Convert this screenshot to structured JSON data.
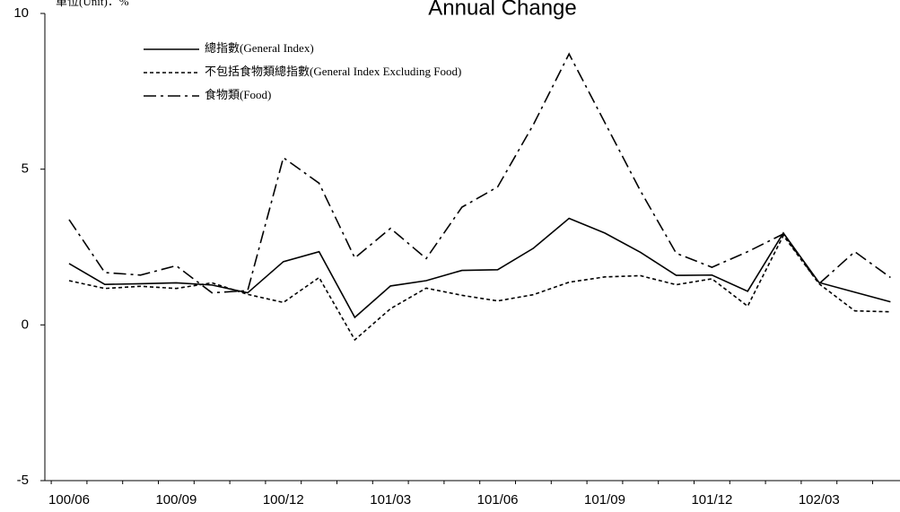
{
  "chart_data": {
    "type": "line",
    "title": "Annual Change",
    "unit_label": "單位(Unit)：%",
    "categories": [
      "100/06",
      null,
      null,
      "100/09",
      null,
      null,
      "100/12",
      null,
      null,
      "101/03",
      null,
      null,
      "101/06",
      null,
      null,
      "101/09",
      null,
      null,
      "101/12",
      null,
      null,
      "102/03",
      null,
      null
    ],
    "series": [
      {
        "name": "總指數(General Index)",
        "color": "#000000",
        "dash": "solid",
        "values": [
          1.97,
          1.3,
          1.32,
          1.35,
          1.28,
          1.03,
          2.03,
          2.35,
          0.24,
          1.25,
          1.42,
          1.75,
          1.77,
          2.46,
          3.42,
          2.95,
          2.33,
          1.59,
          1.6,
          1.08,
          2.95,
          1.36,
          1.05,
          0.74
        ]
      },
      {
        "name": "不包括食物類總指數(General Index Excluding Food)",
        "color": "#000000",
        "dash": "dashed",
        "values": [
          1.42,
          1.17,
          1.24,
          1.17,
          1.35,
          0.98,
          0.72,
          1.52,
          -0.48,
          0.52,
          1.18,
          0.95,
          0.77,
          0.97,
          1.37,
          1.54,
          1.58,
          1.29,
          1.48,
          0.6,
          2.87,
          1.32,
          0.45,
          0.42
        ]
      },
      {
        "name": "食物類(Food)",
        "color": "#000000",
        "dash": "dashdot",
        "values": [
          3.38,
          1.68,
          1.6,
          1.9,
          1.03,
          1.1,
          5.37,
          4.55,
          2.15,
          3.1,
          2.13,
          3.78,
          4.43,
          6.43,
          8.7,
          6.5,
          4.3,
          2.3,
          1.85,
          2.35,
          2.92,
          1.32,
          2.35,
          1.52
        ]
      }
    ],
    "ylim": [
      -5,
      10
    ],
    "yticks": [
      -5,
      0,
      5,
      10
    ],
    "legend": "upper left"
  }
}
